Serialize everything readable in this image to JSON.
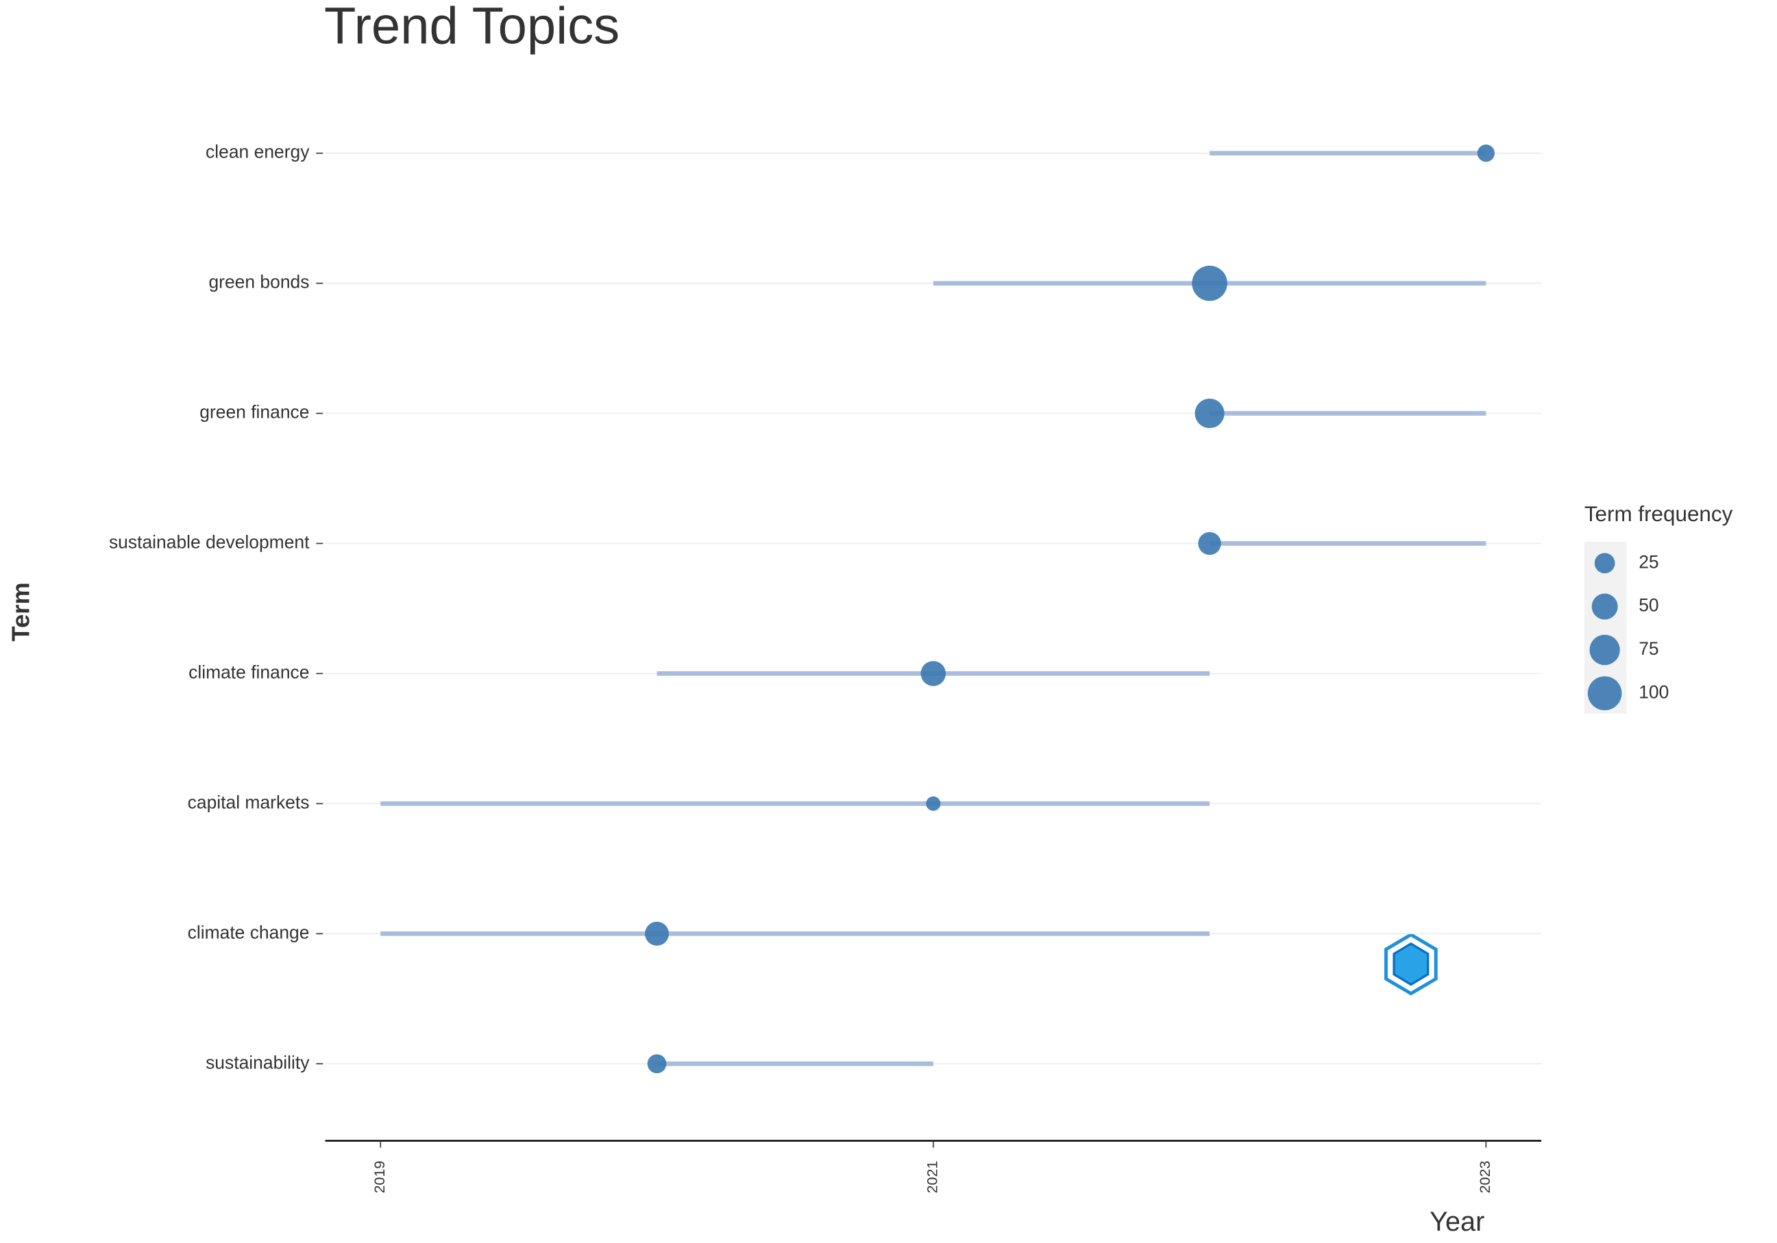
{
  "chart_data": {
    "type": "trend",
    "title": "Trend Topics",
    "x_label": "Year",
    "y_label": "Term",
    "categories": [
      "clean energy",
      "green bonds",
      "green finance",
      "sustainable development",
      "climate finance",
      "capital markets",
      "climate change",
      "sustainability"
    ],
    "year_q1": [
      2022,
      2021,
      2022,
      2022,
      2020,
      2019,
      2019,
      2020
    ],
    "year_median": [
      2023,
      2022,
      2022,
      2022,
      2021,
      2021,
      2020,
      2020
    ],
    "year_q3": [
      2023,
      2023,
      2023,
      2023,
      2022,
      2022,
      2022,
      2021
    ],
    "frequency": [
      15,
      110,
      70,
      35,
      45,
      8,
      40,
      20
    ],
    "point_color": "#3a78b0",
    "line_color": "#a9bcdc",
    "xlim": [
      2018.8,
      2023.2
    ],
    "xticks": [
      2019,
      2021,
      2023
    ],
    "grid": true,
    "size_legend": {
      "title": "Term frequency",
      "values": [
        25,
        50,
        75,
        100
      ]
    }
  }
}
